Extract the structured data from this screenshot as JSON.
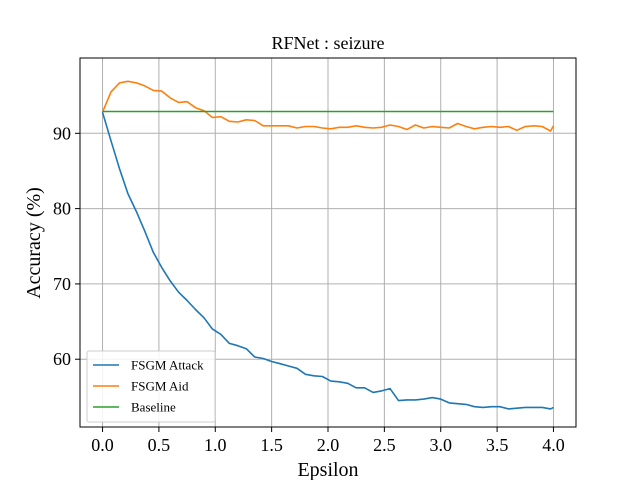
{
  "chart_data": {
    "type": "line",
    "title": "RFNet : seizure",
    "xlabel": "Epsilon",
    "ylabel": "Accuracy (%)",
    "xlim": [
      -0.2,
      4.2
    ],
    "ylim": [
      51,
      100
    ],
    "xticks": [
      0.0,
      0.5,
      1.0,
      1.5,
      2.0,
      2.5,
      3.0,
      3.5,
      4.0
    ],
    "xtick_labels": [
      "0.0",
      "0.5",
      "1.0",
      "1.5",
      "2.0",
      "2.5",
      "3.0",
      "3.5",
      "4.0"
    ],
    "yticks": [
      60,
      70,
      80,
      90
    ],
    "ytick_labels": [
      "60",
      "70",
      "80",
      "90"
    ],
    "grid": true,
    "legend_position": "lower-left",
    "x": [
      0.0,
      0.075,
      0.15,
      0.225,
      0.3,
      0.375,
      0.45,
      0.525,
      0.6,
      0.675,
      0.75,
      0.825,
      0.9,
      0.975,
      1.05,
      1.125,
      1.2,
      1.275,
      1.35,
      1.425,
      1.5,
      1.575,
      1.65,
      1.725,
      1.8,
      1.875,
      1.95,
      2.025,
      2.1,
      2.175,
      2.25,
      2.325,
      2.4,
      2.475,
      2.55,
      2.625,
      2.7,
      2.775,
      2.85,
      2.925,
      3.0,
      3.075,
      3.15,
      3.225,
      3.3,
      3.375,
      3.45,
      3.525,
      3.6,
      3.675,
      3.75,
      3.825,
      3.9,
      3.975,
      4.0
    ],
    "series": [
      {
        "name": "FSGM Attack",
        "color": "#1f77b4",
        "values": [
          92.8,
          89.0,
          85.3,
          82.0,
          79.6,
          77.0,
          74.2,
          72.2,
          70.4,
          68.9,
          67.8,
          66.6,
          65.5,
          64.0,
          63.3,
          62.1,
          61.8,
          61.4,
          60.3,
          60.1,
          59.7,
          59.4,
          59.1,
          58.8,
          58.0,
          57.8,
          57.7,
          57.1,
          57.0,
          56.8,
          56.2,
          56.2,
          55.6,
          55.8,
          56.1,
          54.5,
          54.6,
          54.6,
          54.7,
          54.9,
          54.7,
          54.2,
          54.1,
          54.0,
          53.7,
          53.6,
          53.7,
          53.7,
          53.4,
          53.5,
          53.6,
          53.6,
          53.6,
          53.4,
          53.6
        ]
      },
      {
        "name": "FSGM Aid",
        "color": "#ff7f0e",
        "values": [
          92.8,
          95.5,
          96.7,
          96.9,
          96.7,
          96.3,
          95.7,
          95.6,
          94.7,
          94.1,
          94.2,
          93.4,
          93.0,
          92.1,
          92.2,
          91.6,
          91.5,
          91.8,
          91.7,
          91.0,
          91.0,
          91.0,
          91.0,
          90.7,
          90.9,
          90.9,
          90.7,
          90.6,
          90.8,
          90.8,
          91.0,
          90.8,
          90.7,
          90.8,
          91.1,
          90.9,
          90.5,
          91.1,
          90.7,
          90.9,
          90.8,
          90.7,
          91.3,
          90.9,
          90.6,
          90.8,
          90.9,
          90.8,
          90.9,
          90.4,
          90.9,
          91.0,
          90.9,
          90.3,
          91.0
        ]
      },
      {
        "name": "Baseline",
        "color": "#2ca02c",
        "values": [
          92.9,
          92.9,
          92.9,
          92.9,
          92.9,
          92.9,
          92.9,
          92.9,
          92.9,
          92.9,
          92.9,
          92.9,
          92.9,
          92.9,
          92.9,
          92.9,
          92.9,
          92.9,
          92.9,
          92.9,
          92.9,
          92.9,
          92.9,
          92.9,
          92.9,
          92.9,
          92.9,
          92.9,
          92.9,
          92.9,
          92.9,
          92.9,
          92.9,
          92.9,
          92.9,
          92.9,
          92.9,
          92.9,
          92.9,
          92.9,
          92.9,
          92.9,
          92.9,
          92.9,
          92.9,
          92.9,
          92.9,
          92.9,
          92.9,
          92.9,
          92.9,
          92.9,
          92.9,
          92.9,
          92.9
        ]
      }
    ]
  }
}
